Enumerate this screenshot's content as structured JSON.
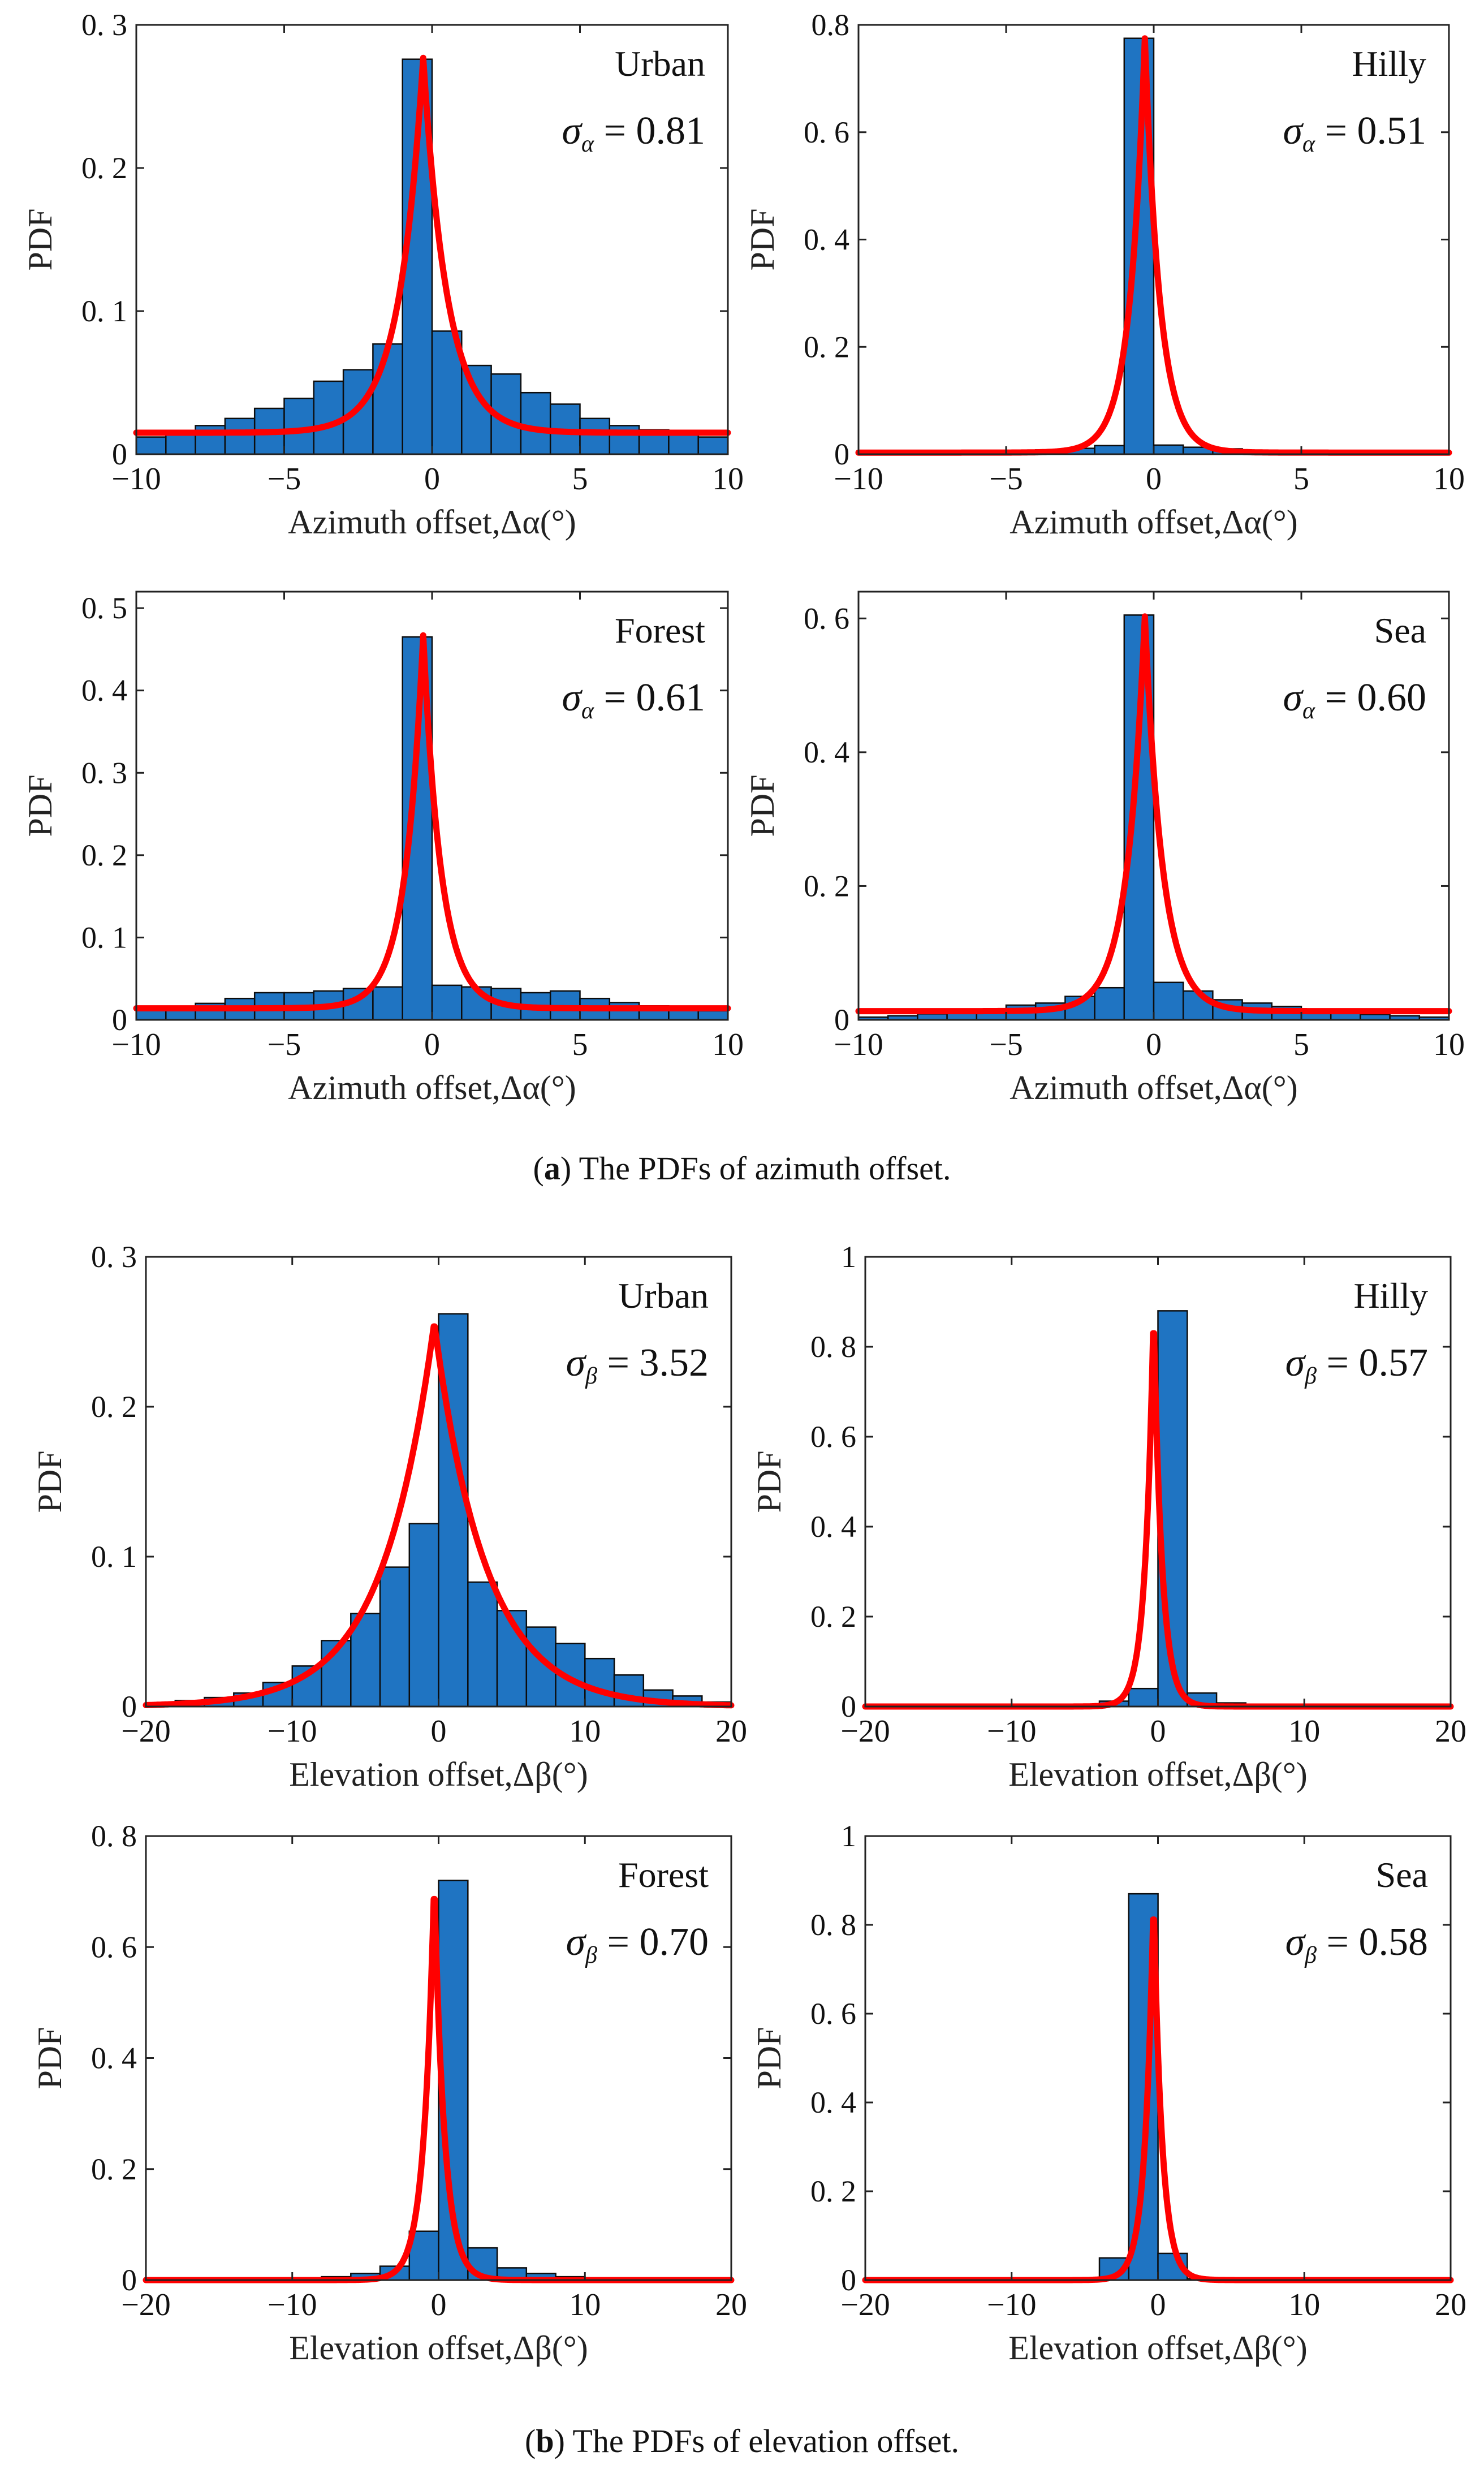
{
  "captions": {
    "a": {
      "label": "a",
      "text": " The PDFs of azimuth offset."
    },
    "b": {
      "label": "b",
      "text": " The PDFs of elevation offset."
    }
  },
  "style": {
    "bar_color": "#1f74c2",
    "curve_color": "#ff0000",
    "frame_color": "#222222"
  },
  "chart_data": [
    {
      "type": "bar",
      "scene": "Urban",
      "sigma_label": "σ",
      "sigma_subscript": "α",
      "sigma_value": "= 0.81",
      "xlabel": "Azimuth offset,Δα(°)",
      "ylabel": "PDF",
      "xlim": [
        -10,
        10
      ],
      "ylim": [
        0,
        0.3
      ],
      "xticks": [
        -10,
        -5,
        0,
        5,
        10
      ],
      "xtick_labels": [
        "−10",
        "−5",
        "0",
        "5",
        "10"
      ],
      "yticks": [
        0,
        0.1,
        0.2,
        0.3
      ],
      "ytick_labels": [
        "0",
        "0. 1",
        "0. 2",
        "0. 3"
      ],
      "bin_width": 1,
      "bars": {
        "x": [
          -9.5,
          -8.5,
          -7.5,
          -6.5,
          -5.5,
          -4.5,
          -3.5,
          -2.5,
          -1.5,
          -0.5,
          0.5,
          1.5,
          2.5,
          3.5,
          4.5,
          5.5,
          6.5,
          7.5,
          8.5,
          9.5
        ],
        "values": [
          0.012,
          0.016,
          0.02,
          0.025,
          0.032,
          0.039,
          0.051,
          0.059,
          0.077,
          0.276,
          0.086,
          0.062,
          0.056,
          0.043,
          0.035,
          0.025,
          0.02,
          0.017,
          0.014,
          0.012
        ]
      },
      "curve": {
        "name": "fit",
        "type": "laplacian_fit",
        "center": -0.3,
        "peak": 0.277,
        "scale": 0.81,
        "tail": 0.015
      }
    },
    {
      "type": "bar",
      "scene": "Hilly",
      "sigma_label": "σ",
      "sigma_subscript": "α",
      "sigma_value": "= 0.51",
      "xlabel": "Azimuth offset,Δα(°)",
      "ylabel": "PDF",
      "xlim": [
        -10,
        10
      ],
      "ylim": [
        0,
        0.8
      ],
      "xticks": [
        -10,
        -5,
        0,
        5,
        10
      ],
      "xtick_labels": [
        "−10",
        "−5",
        "0",
        "5",
        "10"
      ],
      "yticks": [
        0,
        0.2,
        0.4,
        0.6,
        0.8
      ],
      "ytick_labels": [
        "0",
        "0. 2",
        "0. 4",
        "0. 6",
        "0.8"
      ],
      "bin_width": 1,
      "bars": {
        "x": [
          -9.5,
          -8.5,
          -7.5,
          -6.5,
          -5.5,
          -4.5,
          -3.5,
          -2.5,
          -1.5,
          -0.5,
          0.5,
          1.5,
          2.5,
          3.5,
          4.5,
          5.5,
          6.5,
          7.5,
          8.5,
          9.5
        ],
        "values": [
          0.002,
          0.002,
          0.003,
          0.003,
          0.004,
          0.006,
          0.008,
          0.011,
          0.016,
          0.775,
          0.017,
          0.013,
          0.01,
          0.007,
          0.005,
          0.004,
          0.003,
          0.003,
          0.002,
          0.002
        ]
      },
      "curve": {
        "name": "fit",
        "type": "laplacian_fit",
        "center": -0.3,
        "peak": 0.775,
        "scale": 0.51,
        "tail": 0.003
      }
    },
    {
      "type": "bar",
      "scene": "Forest",
      "sigma_label": "σ",
      "sigma_subscript": "α",
      "sigma_value": "= 0.61",
      "xlabel": "Azimuth offset,Δα(°)",
      "ylabel": "PDF",
      "xlim": [
        -10,
        10
      ],
      "ylim": [
        0,
        0.52
      ],
      "xticks": [
        -10,
        -5,
        0,
        5,
        10
      ],
      "xtick_labels": [
        "−10",
        "−5",
        "0",
        "5",
        "10"
      ],
      "yticks": [
        0,
        0.1,
        0.2,
        0.3,
        0.4,
        0.5
      ],
      "ytick_labels": [
        "0",
        "0. 1",
        "0. 2",
        "0. 3",
        "0. 4",
        "0. 5"
      ],
      "bin_width": 1,
      "bars": {
        "x": [
          -9.5,
          -8.5,
          -7.5,
          -6.5,
          -5.5,
          -4.5,
          -3.5,
          -2.5,
          -1.5,
          -0.5,
          0.5,
          1.5,
          2.5,
          3.5,
          4.5,
          5.5,
          6.5,
          7.5,
          8.5,
          9.5
        ],
        "values": [
          0.012,
          0.016,
          0.02,
          0.026,
          0.033,
          0.033,
          0.035,
          0.038,
          0.04,
          0.465,
          0.042,
          0.04,
          0.038,
          0.033,
          0.035,
          0.026,
          0.021,
          0.017,
          0.013,
          0.011
        ]
      },
      "curve": {
        "name": "fit",
        "type": "laplacian_fit",
        "center": -0.3,
        "peak": 0.467,
        "scale": 0.61,
        "tail": 0.014
      }
    },
    {
      "type": "bar",
      "scene": "Sea",
      "sigma_label": "σ",
      "sigma_subscript": "α",
      "sigma_value": "= 0.60",
      "xlabel": "Azimuth offset,Δα(°)",
      "ylabel": "PDF",
      "xlim": [
        -10,
        10
      ],
      "ylim": [
        0,
        0.64
      ],
      "xticks": [
        -10,
        -5,
        0,
        5,
        10
      ],
      "xtick_labels": [
        "−10",
        "−5",
        "0",
        "5",
        "10"
      ],
      "yticks": [
        0,
        0.2,
        0.4,
        0.6
      ],
      "ytick_labels": [
        "0",
        "0. 2",
        "0. 4",
        "0. 6"
      ],
      "bin_width": 1,
      "bars": {
        "x": [
          -9.5,
          -8.5,
          -7.5,
          -6.5,
          -5.5,
          -4.5,
          -3.5,
          -2.5,
          -1.5,
          -0.5,
          0.5,
          1.5,
          2.5,
          3.5,
          4.5,
          5.5,
          6.5,
          7.5,
          8.5,
          9.5
        ],
        "values": [
          0.004,
          0.006,
          0.009,
          0.012,
          0.016,
          0.022,
          0.025,
          0.035,
          0.048,
          0.605,
          0.056,
          0.043,
          0.03,
          0.025,
          0.02,
          0.014,
          0.01,
          0.008,
          0.006,
          0.004
        ]
      },
      "curve": {
        "name": "fit",
        "type": "laplacian_fit",
        "center": -0.3,
        "peak": 0.603,
        "scale": 0.6,
        "tail": 0.013
      }
    },
    {
      "type": "bar",
      "scene": "Urban",
      "sigma_label": "σ",
      "sigma_subscript": "β",
      "sigma_value": "= 3.52",
      "xlabel": "Elevation offset,Δβ(°)",
      "ylabel": "PDF",
      "xlim": [
        -20,
        20
      ],
      "ylim": [
        0,
        0.3
      ],
      "xticks": [
        -20,
        -10,
        0,
        10,
        20
      ],
      "xtick_labels": [
        "−20",
        "−10",
        "0",
        "10",
        "20"
      ],
      "yticks": [
        0,
        0.1,
        0.2,
        0.3
      ],
      "ytick_labels": [
        "0",
        "0. 1",
        "0. 2",
        "0. 3"
      ],
      "bin_width": 2,
      "bars": {
        "x": [
          -19,
          -17,
          -15,
          -13,
          -11,
          -9,
          -7,
          -5,
          -3,
          -1,
          1,
          3,
          5,
          7,
          9,
          11,
          13,
          15,
          17,
          19
        ],
        "values": [
          0.0,
          0.004,
          0.006,
          0.009,
          0.016,
          0.027,
          0.044,
          0.062,
          0.093,
          0.122,
          0.262,
          0.083,
          0.064,
          0.053,
          0.042,
          0.032,
          0.021,
          0.011,
          0.007,
          0.003
        ]
      },
      "curve": {
        "name": "fit",
        "type": "laplacian_fit",
        "center": -0.3,
        "peak": 0.256,
        "scale": 3.52,
        "tail": 0.0
      }
    },
    {
      "type": "bar",
      "scene": "Hilly",
      "sigma_label": "σ",
      "sigma_subscript": "β",
      "sigma_value": "= 0.57",
      "xlabel": "Elevation offset,Δβ(°)",
      "ylabel": "PDF",
      "xlim": [
        -20,
        20
      ],
      "ylim": [
        0,
        1
      ],
      "xticks": [
        -20,
        -10,
        0,
        10,
        20
      ],
      "xtick_labels": [
        "−20",
        "−10",
        "0",
        "10",
        "20"
      ],
      "yticks": [
        0,
        0.2,
        0.4,
        0.6,
        0.8,
        1
      ],
      "ytick_labels": [
        "0",
        "0. 2",
        "0. 4",
        "0. 6",
        "0. 8",
        "1"
      ],
      "bin_width": 2,
      "bars": {
        "x": [
          -19,
          -17,
          -15,
          -13,
          -11,
          -9,
          -7,
          -5,
          -3,
          -1,
          1,
          3,
          5,
          7,
          9,
          11,
          13,
          15,
          17,
          19
        ],
        "values": [
          0.0,
          0.0,
          0.0,
          0.0,
          0.0,
          0.001,
          0.002,
          0.004,
          0.012,
          0.04,
          0.88,
          0.03,
          0.008,
          0.003,
          0.002,
          0.0,
          0.0,
          0.0,
          0.0,
          0.0
        ]
      },
      "curve": {
        "name": "fit",
        "type": "laplacian_fit",
        "center": -0.3,
        "peak": 0.88,
        "scale": 0.57,
        "tail": 0.0
      }
    },
    {
      "type": "bar",
      "scene": "Forest",
      "sigma_label": "σ",
      "sigma_subscript": "β",
      "sigma_value": "= 0.70",
      "xlabel": "Elevation offset,Δβ(°)",
      "ylabel": "PDF",
      "xlim": [
        -20,
        20
      ],
      "ylim": [
        0,
        0.8
      ],
      "xticks": [
        -20,
        -10,
        0,
        10,
        20
      ],
      "xtick_labels": [
        "−20",
        "−10",
        "0",
        "10",
        "20"
      ],
      "yticks": [
        0,
        0.2,
        0.4,
        0.6,
        0.8
      ],
      "ytick_labels": [
        "0",
        "0. 2",
        "0. 4",
        "0. 6",
        "0. 8"
      ],
      "bin_width": 2,
      "bars": {
        "x": [
          -19,
          -17,
          -15,
          -13,
          -11,
          -9,
          -7,
          -5,
          -3,
          -1,
          1,
          3,
          5,
          7,
          9,
          11,
          13,
          15,
          17,
          19
        ],
        "values": [
          0.0,
          0.0,
          0.0,
          0.0,
          0.002,
          0.003,
          0.006,
          0.012,
          0.025,
          0.088,
          0.72,
          0.058,
          0.022,
          0.012,
          0.006,
          0.004,
          0.002,
          0.0,
          0.0,
          0.0
        ]
      },
      "curve": {
        "name": "fit",
        "type": "laplacian_fit",
        "center": -0.3,
        "peak": 0.72,
        "scale": 0.7,
        "tail": 0.0
      }
    },
    {
      "type": "bar",
      "scene": "Sea",
      "sigma_label": "σ",
      "sigma_subscript": "β",
      "sigma_value": "= 0.58",
      "xlabel": "Elevation offset,Δβ(°)",
      "ylabel": "PDF",
      "xlim": [
        -20,
        20
      ],
      "ylim": [
        0,
        1
      ],
      "xticks": [
        -20,
        -10,
        0,
        10,
        20
      ],
      "xtick_labels": [
        "−20",
        "−10",
        "0",
        "10",
        "20"
      ],
      "yticks": [
        0,
        0.2,
        0.4,
        0.6,
        0.8,
        1
      ],
      "ytick_labels": [
        "0",
        "0. 2",
        "0. 4",
        "0. 6",
        "0. 8",
        "1"
      ],
      "bin_width": 2,
      "bars": {
        "x": [
          -19,
          -17,
          -15,
          -13,
          -11,
          -9,
          -7,
          -5,
          -3,
          -1,
          1,
          3,
          5,
          7,
          9,
          11,
          13,
          15,
          17,
          19
        ],
        "values": [
          0.0,
          0.0,
          0.0,
          0.0,
          0.0,
          0.001,
          0.002,
          0.004,
          0.05,
          0.87,
          0.06,
          0.003,
          0.002,
          0.001,
          0.0,
          0.0,
          0.0,
          0.0,
          0.0,
          0.0
        ]
      },
      "curve": {
        "name": "fit",
        "type": "laplacian_fit",
        "center": -0.3,
        "peak": 0.86,
        "scale": 0.58,
        "tail": 0.0
      }
    }
  ]
}
